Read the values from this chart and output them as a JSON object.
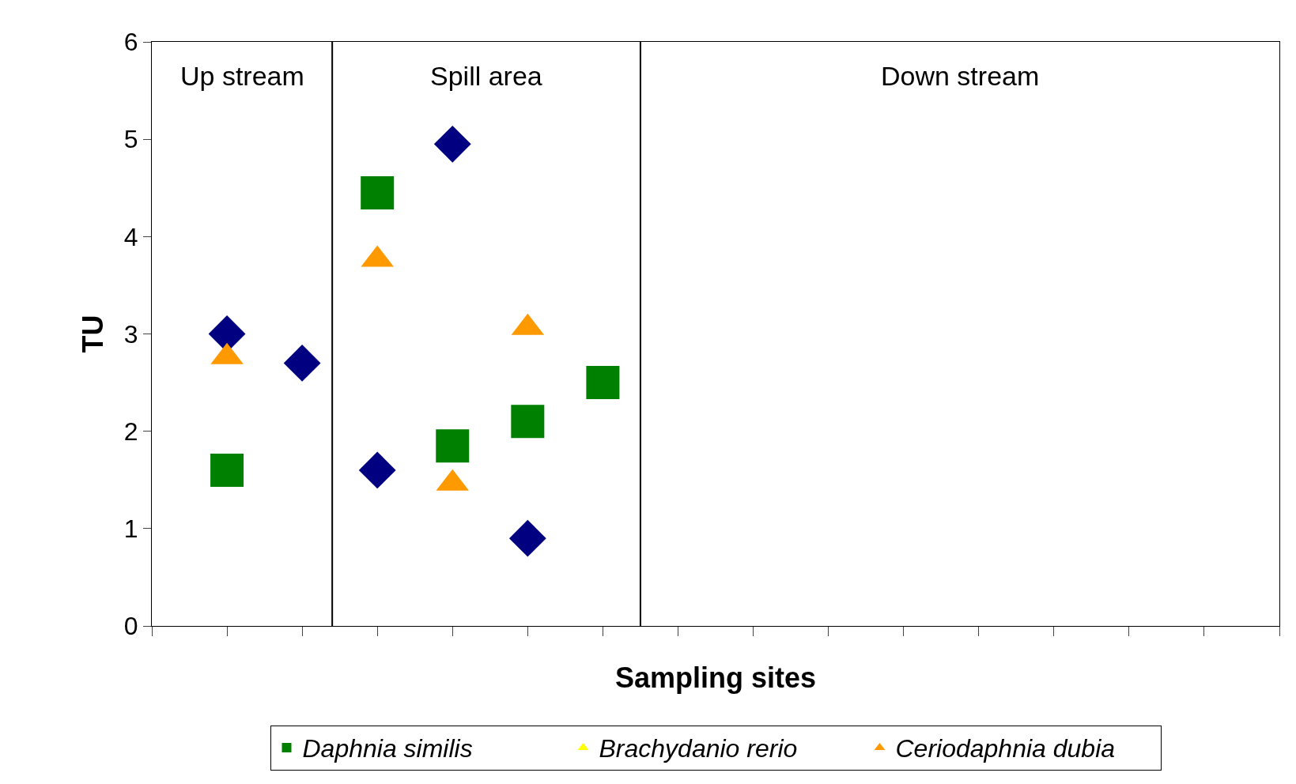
{
  "chart_data": {
    "type": "scatter",
    "xlabel": "Sampling sites",
    "ylabel": "TU",
    "categories": [
      null,
      null,
      null,
      null,
      null,
      null,
      null,
      null,
      null,
      null,
      null,
      null,
      null,
      null,
      null,
      null
    ],
    "ylim": [
      0,
      6
    ],
    "yticks": [
      0,
      1,
      2,
      3,
      4,
      5,
      6
    ],
    "legend": "bottom",
    "tick_labels": "y",
    "annotations": [
      "Up stream",
      "Spill area",
      "Down stream"
    ],
    "series": [
      {
        "color": "#000080",
        "marker": "diamond",
        "values": [
          null,
          3.0,
          2.7,
          1.6,
          4.95,
          0.9,
          null,
          null,
          null,
          null,
          null,
          null,
          null,
          null,
          null,
          null
        ]
      },
      {
        "name": "Daphnia similis",
        "color": "#008000",
        "marker": "square",
        "values": [
          null,
          1.6,
          null,
          4.45,
          1.85,
          2.1,
          2.5,
          null,
          null,
          null,
          null,
          null,
          null,
          null,
          null,
          null
        ]
      },
      {
        "name": "Brachydanio rerio",
        "color": "#ffff00",
        "marker": "triangle",
        "values": [
          null,
          null,
          null,
          null,
          null,
          null,
          null,
          null,
          null,
          null,
          null,
          null,
          null,
          null,
          null,
          null
        ]
      },
      {
        "name": "Ceriodaphnia dubia",
        "color": "#ff9900",
        "marker": "triangle",
        "values": [
          null,
          2.8,
          null,
          3.8,
          1.5,
          3.1,
          null,
          null,
          null,
          null,
          null,
          null,
          null,
          null,
          null,
          null
        ]
      }
    ]
  }
}
